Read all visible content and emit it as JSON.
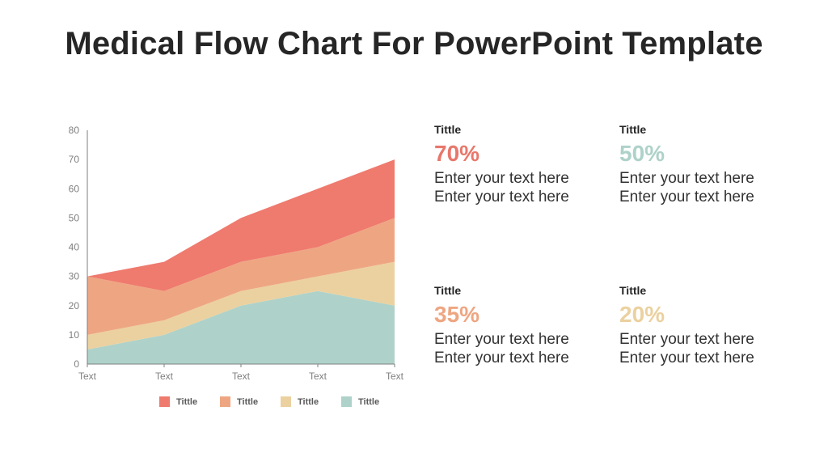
{
  "page": {
    "title": "Medical Flow Chart For PowerPoint Template"
  },
  "chart_data": {
    "type": "area",
    "stacked": true,
    "title": "",
    "xlabel": "",
    "ylabel": "",
    "categories": [
      "Text",
      "Text",
      "Text",
      "Text",
      "Text"
    ],
    "y_ticks": [
      0,
      10,
      20,
      30,
      40,
      50,
      60,
      70,
      80
    ],
    "ylim": [
      0,
      80
    ],
    "grid": false,
    "legend_position": "bottom",
    "series": [
      {
        "name": "Tittle",
        "color": "#aed2c9",
        "values": [
          5,
          10,
          20,
          25,
          20
        ]
      },
      {
        "name": "Tittle",
        "color": "#ebd1a0",
        "values": [
          5,
          5,
          5,
          5,
          15
        ]
      },
      {
        "name": "Tittle",
        "color": "#eea682",
        "values": [
          20,
          10,
          10,
          10,
          15
        ]
      },
      {
        "name": "Tittle",
        "color": "#ef7a6e",
        "values": [
          0,
          10,
          15,
          20,
          20
        ]
      }
    ],
    "cumulative_tops": [
      [
        5,
        10,
        20,
        25,
        20
      ],
      [
        10,
        15,
        25,
        30,
        35
      ],
      [
        30,
        25,
        35,
        40,
        50
      ],
      [
        30,
        35,
        50,
        60,
        70
      ]
    ]
  },
  "legend": [
    {
      "label": "Tittle",
      "color": "#ef7a6e"
    },
    {
      "label": "Tittle",
      "color": "#eea682"
    },
    {
      "label": "Tittle",
      "color": "#ebd1a0"
    },
    {
      "label": "Tittle",
      "color": "#aed2c9"
    }
  ],
  "cards": [
    {
      "title": "Tittle",
      "value": "70%",
      "color": "#e8776c",
      "line1": "Enter your text here",
      "line2": "Enter your text here"
    },
    {
      "title": "Tittle",
      "value": "50%",
      "color": "#aed2c9",
      "line1": "Enter your text here",
      "line2": "Enter your text here"
    },
    {
      "title": "Tittle",
      "value": "35%",
      "color": "#eea682",
      "line1": "Enter your text here",
      "line2": "Enter your text here"
    },
    {
      "title": "Tittle",
      "value": "20%",
      "color": "#ebd1a0",
      "line1": "Enter your text here",
      "line2": "Enter your text here"
    }
  ]
}
